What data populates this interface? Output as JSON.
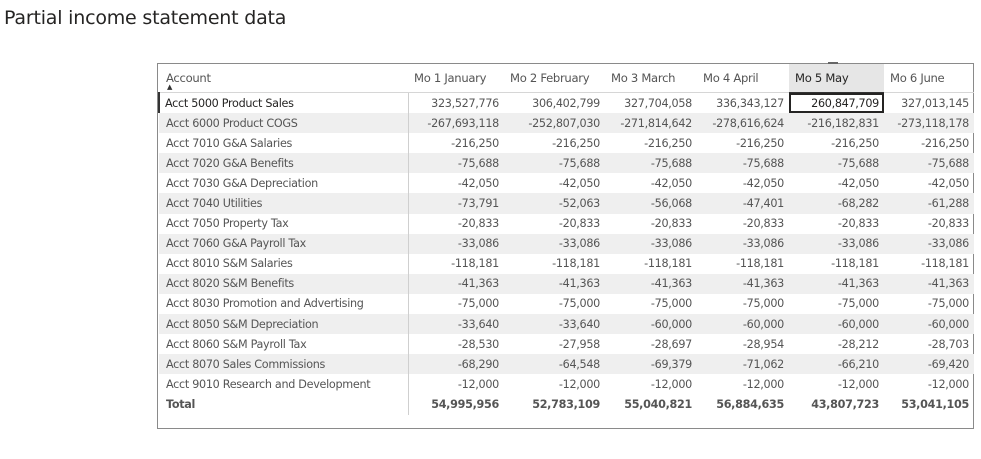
{
  "page_title": "Partial income statement data",
  "table": {
    "columns": [
      "Account",
      "Mo 1 January",
      "Mo 2 February",
      "Mo 3 March",
      "Mo 4 April",
      "Mo 5 May",
      "Mo 6 June"
    ],
    "rows": [
      {
        "account": "Acct 5000 Product Sales",
        "values": [
          "323,527,776",
          "306,402,799",
          "327,704,058",
          "336,343,127",
          "260,847,709",
          "327,013,145"
        ]
      },
      {
        "account": "Acct 6000 Product COGS",
        "values": [
          "-267,693,118",
          "-252,807,030",
          "-271,814,642",
          "-278,616,624",
          "-216,182,831",
          "-273,118,178"
        ]
      },
      {
        "account": "Acct 7010 G&A Salaries",
        "values": [
          "-216,250",
          "-216,250",
          "-216,250",
          "-216,250",
          "-216,250",
          "-216,250"
        ]
      },
      {
        "account": "Acct 7020 G&A Benefits",
        "values": [
          "-75,688",
          "-75,688",
          "-75,688",
          "-75,688",
          "-75,688",
          "-75,688"
        ]
      },
      {
        "account": "Acct 7030 G&A Depreciation",
        "values": [
          "-42,050",
          "-42,050",
          "-42,050",
          "-42,050",
          "-42,050",
          "-42,050"
        ]
      },
      {
        "account": "Acct 7040 Utilities",
        "values": [
          "-73,791",
          "-52,063",
          "-56,068",
          "-47,401",
          "-68,282",
          "-61,288"
        ]
      },
      {
        "account": "Acct 7050 Property Tax",
        "values": [
          "-20,833",
          "-20,833",
          "-20,833",
          "-20,833",
          "-20,833",
          "-20,833"
        ]
      },
      {
        "account": "Acct 7060 G&A Payroll Tax",
        "values": [
          "-33,086",
          "-33,086",
          "-33,086",
          "-33,086",
          "-33,086",
          "-33,086"
        ]
      },
      {
        "account": "Acct 8010 S&M Salaries",
        "values": [
          "-118,181",
          "-118,181",
          "-118,181",
          "-118,181",
          "-118,181",
          "-118,181"
        ]
      },
      {
        "account": "Acct 8020 S&M Benefits",
        "values": [
          "-41,363",
          "-41,363",
          "-41,363",
          "-41,363",
          "-41,363",
          "-41,363"
        ]
      },
      {
        "account": "Acct 8030 Promotion and Advertising",
        "values": [
          "-75,000",
          "-75,000",
          "-75,000",
          "-75,000",
          "-75,000",
          "-75,000"
        ]
      },
      {
        "account": "Acct 8050 S&M Depreciation",
        "values": [
          "-33,640",
          "-33,640",
          "-60,000",
          "-60,000",
          "-60,000",
          "-60,000"
        ]
      },
      {
        "account": "Acct 8060 S&M Payroll Tax",
        "values": [
          "-28,530",
          "-27,958",
          "-28,697",
          "-28,954",
          "-28,212",
          "-28,703"
        ]
      },
      {
        "account": "Acct 8070 Sales Commissions",
        "values": [
          "-68,290",
          "-64,548",
          "-69,379",
          "-71,062",
          "-66,210",
          "-69,420"
        ]
      },
      {
        "account": "Acct 9010 Research and Development",
        "values": [
          "-12,000",
          "-12,000",
          "-12,000",
          "-12,000",
          "-12,000",
          "-12,000"
        ]
      }
    ],
    "total": {
      "account": "Total",
      "values": [
        "54,995,956",
        "52,783,109",
        "55,040,821",
        "56,884,635",
        "43,807,723",
        "53,041,105"
      ]
    },
    "sort_icon": "sort-ascending-icon"
  }
}
